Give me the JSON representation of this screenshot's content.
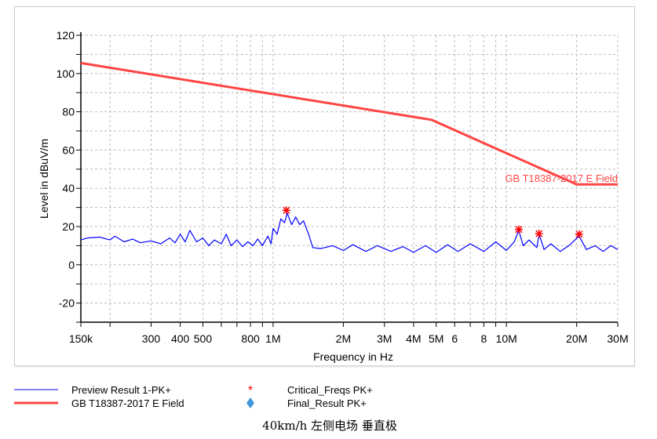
{
  "chart_data": {
    "type": "line",
    "xlabel": "Frequency in Hz",
    "ylabel": "Level in dBuV/m",
    "x_scale": "log",
    "xlim_MHz": [
      0.15,
      30
    ],
    "ylim": [
      -30,
      120
    ],
    "y_ticks": [
      120,
      100,
      80,
      60,
      40,
      20,
      0,
      -20
    ],
    "x_ticks": [
      {
        "MHz": 0.15,
        "label": "150k"
      },
      {
        "MHz": 0.3,
        "label": "300"
      },
      {
        "MHz": 0.4,
        "label": "400"
      },
      {
        "MHz": 0.5,
        "label": "500"
      },
      {
        "MHz": 0.8,
        "label": "800"
      },
      {
        "MHz": 1,
        "label": "1M"
      },
      {
        "MHz": 2,
        "label": "2M"
      },
      {
        "MHz": 3,
        "label": "3M"
      },
      {
        "MHz": 4,
        "label": "4M"
      },
      {
        "MHz": 5,
        "label": "5M"
      },
      {
        "MHz": 6,
        "label": "6"
      },
      {
        "MHz": 8,
        "label": "8"
      },
      {
        "MHz": 10,
        "label": "10M"
      },
      {
        "MHz": 20,
        "label": "20M"
      },
      {
        "MHz": 30,
        "label": "30M"
      }
    ],
    "grid": true,
    "series": [
      {
        "name": "Preview Result 1-PK+",
        "color": "#0000ff",
        "points": [
          [
            0.15,
            13
          ],
          [
            0.16,
            14
          ],
          [
            0.18,
            14.5
          ],
          [
            0.2,
            13
          ],
          [
            0.21,
            15
          ],
          [
            0.23,
            12
          ],
          [
            0.25,
            13.5
          ],
          [
            0.27,
            11.5
          ],
          [
            0.3,
            12.5
          ],
          [
            0.33,
            11
          ],
          [
            0.36,
            14
          ],
          [
            0.38,
            11.5
          ],
          [
            0.4,
            16
          ],
          [
            0.42,
            12
          ],
          [
            0.44,
            18
          ],
          [
            0.47,
            12
          ],
          [
            0.5,
            14
          ],
          [
            0.53,
            10
          ],
          [
            0.56,
            13
          ],
          [
            0.6,
            11
          ],
          [
            0.63,
            16
          ],
          [
            0.66,
            10
          ],
          [
            0.7,
            13
          ],
          [
            0.74,
            9.5
          ],
          [
            0.78,
            12
          ],
          [
            0.82,
            10
          ],
          [
            0.86,
            13.5
          ],
          [
            0.9,
            10
          ],
          [
            0.95,
            15
          ],
          [
            0.98,
            11
          ],
          [
            1.0,
            19
          ],
          [
            1.04,
            16
          ],
          [
            1.08,
            24
          ],
          [
            1.12,
            22
          ],
          [
            1.15,
            27
          ],
          [
            1.2,
            21
          ],
          [
            1.25,
            25
          ],
          [
            1.3,
            21
          ],
          [
            1.35,
            23
          ],
          [
            1.42,
            16
          ],
          [
            1.48,
            9
          ],
          [
            1.6,
            8.5
          ],
          [
            1.8,
            10
          ],
          [
            2.0,
            7.5
          ],
          [
            2.2,
            10.5
          ],
          [
            2.5,
            7
          ],
          [
            2.8,
            10
          ],
          [
            3.2,
            7
          ],
          [
            3.6,
            9.5
          ],
          [
            4.0,
            6.5
          ],
          [
            4.5,
            10
          ],
          [
            5.0,
            6.5
          ],
          [
            5.6,
            10.5
          ],
          [
            6.2,
            7
          ],
          [
            7.0,
            11
          ],
          [
            8.0,
            7
          ],
          [
            9.0,
            12
          ],
          [
            10,
            7.5
          ],
          [
            10.8,
            12
          ],
          [
            11.3,
            18
          ],
          [
            11.8,
            10
          ],
          [
            12.5,
            13
          ],
          [
            13.5,
            9
          ],
          [
            13.8,
            16
          ],
          [
            14.5,
            8
          ],
          [
            15.5,
            11
          ],
          [
            17,
            7
          ],
          [
            18.5,
            10
          ],
          [
            20.5,
            15
          ],
          [
            22,
            8
          ],
          [
            24,
            10
          ],
          [
            26,
            7
          ],
          [
            28,
            10
          ],
          [
            30,
            8
          ]
        ]
      },
      {
        "name": "GB T18387-2017 E Field",
        "color": "#ff4444",
        "points": [
          [
            0.15,
            105.5
          ],
          [
            4.77,
            75.8
          ],
          [
            20,
            42
          ],
          [
            30,
            42
          ]
        ]
      }
    ],
    "markers": [
      {
        "name": "Critical_Freqs PK+",
        "symbol": "asterisk",
        "color": "#ff0000",
        "points": [
          [
            1.14,
            28.5
          ],
          [
            11.3,
            18.5
          ],
          [
            13.8,
            16.3
          ],
          [
            20.5,
            16
          ]
        ]
      },
      {
        "name": "Final_Result PK+",
        "symbol": "diamond",
        "color": "#4499dd",
        "points": []
      }
    ],
    "limit_label": "GB T18387-2017 E Field",
    "legend_position": "bottom",
    "caption": "40km/h 左侧电场 垂直极"
  },
  "legend": [
    {
      "label": "Preview Result 1-PK+",
      "color": "#0000ff",
      "symbol": "thin-line"
    },
    {
      "label": "GB T18387-2017 E Field",
      "color": "#ff4444",
      "symbol": "thick-line"
    },
    {
      "label": "Critical_Freqs PK+",
      "color": "#ff0000",
      "symbol": "asterisk"
    },
    {
      "label": "Final_Result PK+",
      "color": "#4499dd",
      "symbol": "diamond"
    }
  ]
}
